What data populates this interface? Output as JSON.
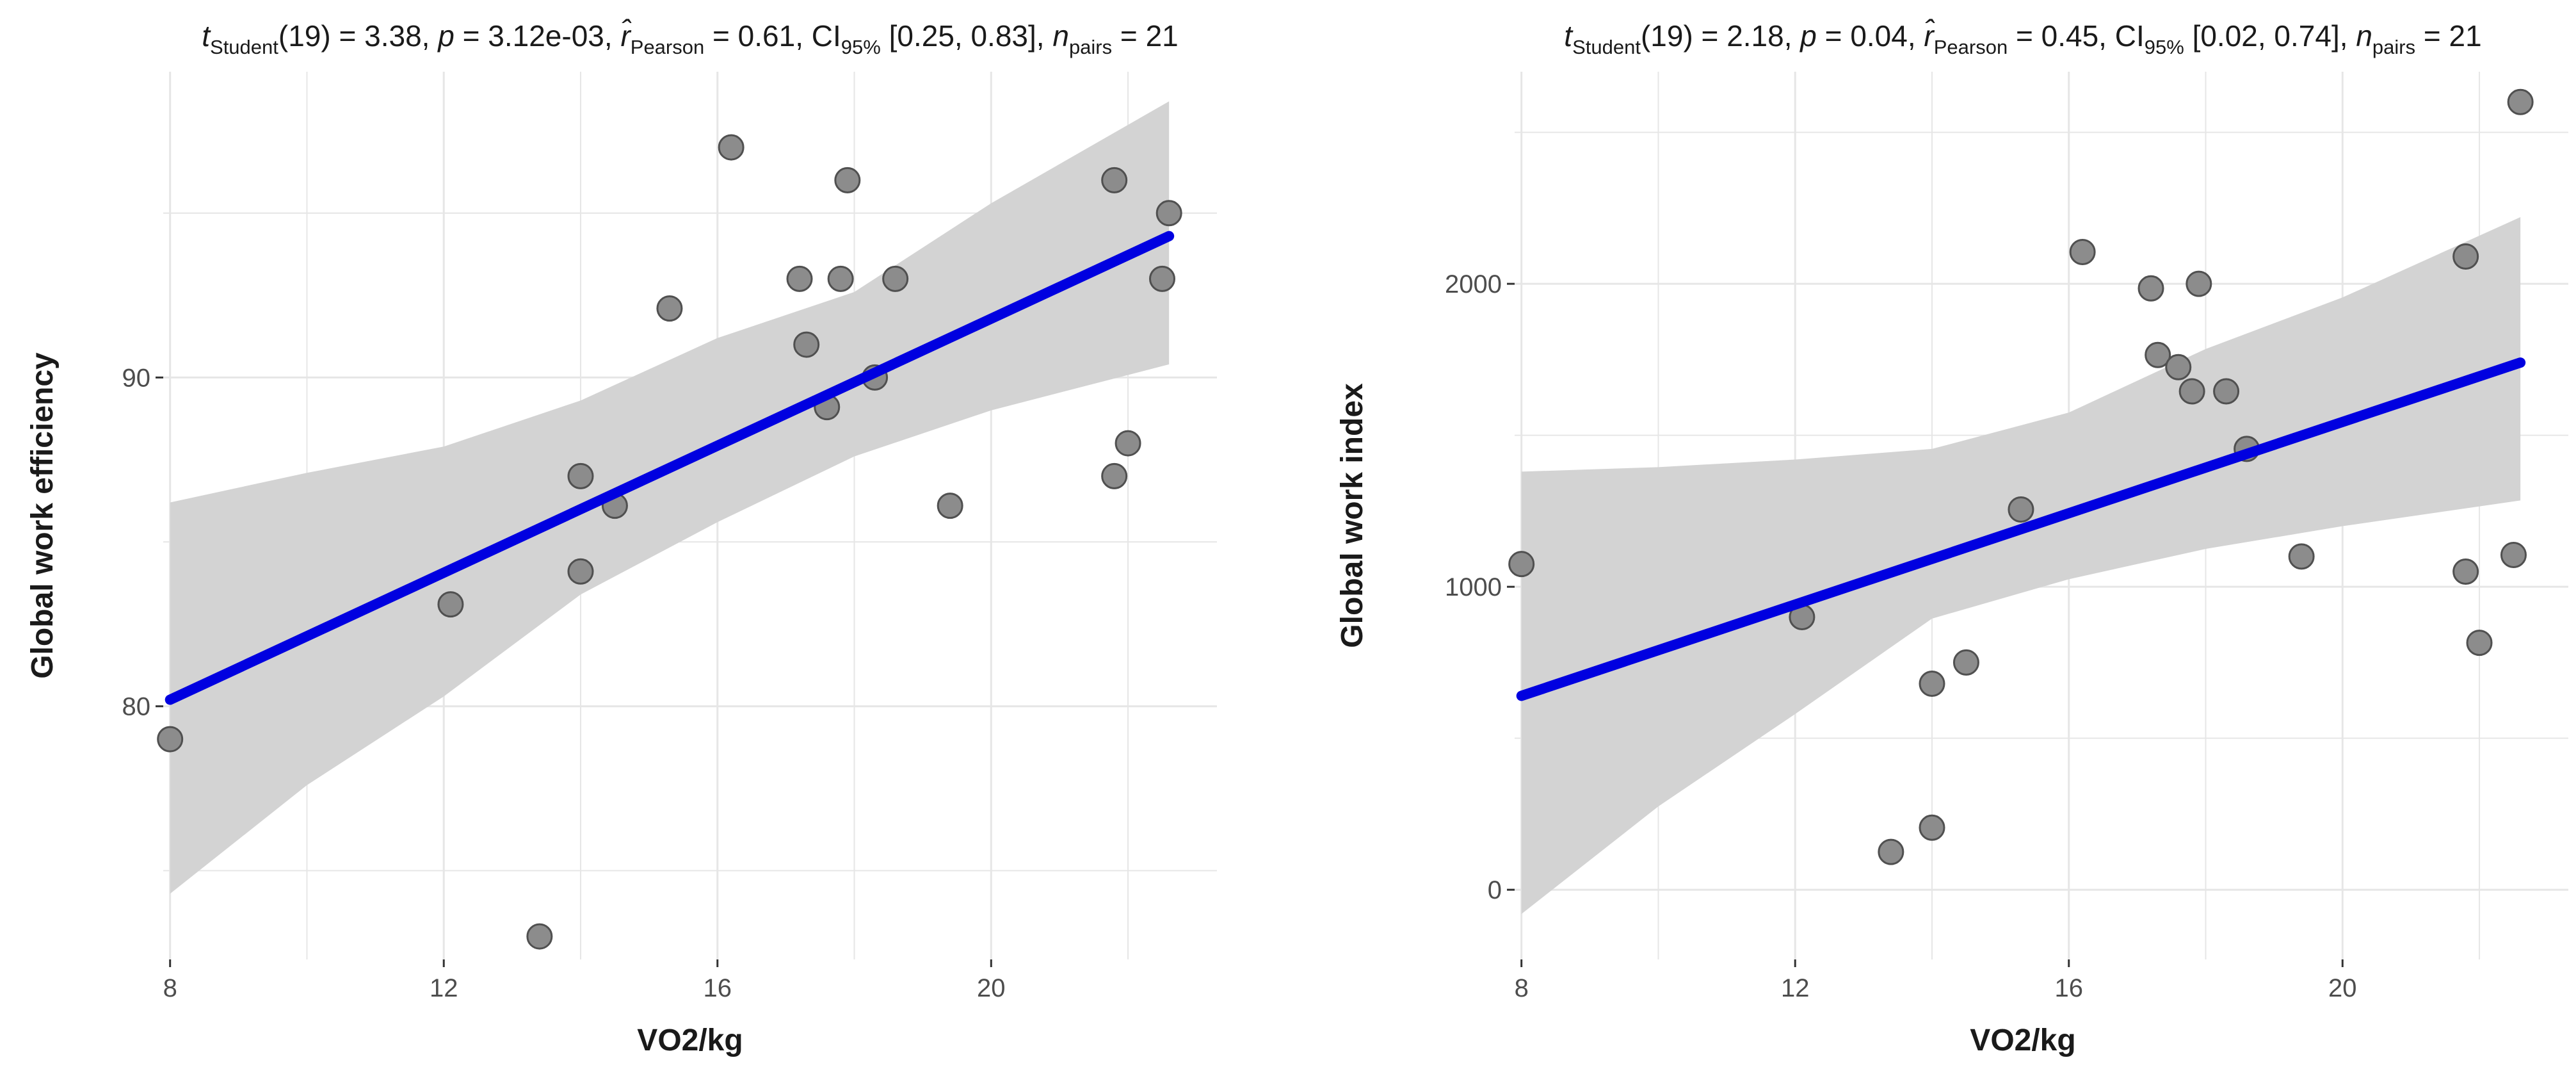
{
  "chart_data": [
    {
      "type": "scatter",
      "subtitle": {
        "test": "Student",
        "df": "19",
        "t": "3.38",
        "p": "3.12e-03",
        "r_label": "Pearson",
        "r": "0.61",
        "ci_label": "95%",
        "ci": "[0.25, 0.83]",
        "n_label": "pairs",
        "n": "21"
      },
      "xlabel": "VO2/kg",
      "ylabel": "Global work efficiency",
      "xlim": [
        7.9,
        23.3
      ],
      "ylim": [
        72.3,
        99.3
      ],
      "xticks": [
        8,
        12,
        16,
        20
      ],
      "yticks": [
        80,
        90
      ],
      "grid": true,
      "points": [
        {
          "x": 8.0,
          "y": 79.0
        },
        {
          "x": 12.1,
          "y": 83.1
        },
        {
          "x": 13.4,
          "y": 73.0
        },
        {
          "x": 14.0,
          "y": 87.0
        },
        {
          "x": 14.0,
          "y": 84.1
        },
        {
          "x": 14.5,
          "y": 86.1
        },
        {
          "x": 15.3,
          "y": 92.1
        },
        {
          "x": 16.2,
          "y": 97.0
        },
        {
          "x": 17.2,
          "y": 93.0
        },
        {
          "x": 17.3,
          "y": 91.0
        },
        {
          "x": 17.6,
          "y": 89.1
        },
        {
          "x": 17.8,
          "y": 93.0
        },
        {
          "x": 17.9,
          "y": 96.0
        },
        {
          "x": 18.3,
          "y": 90.0
        },
        {
          "x": 18.6,
          "y": 93.0
        },
        {
          "x": 19.4,
          "y": 86.1
        },
        {
          "x": 21.8,
          "y": 96.0
        },
        {
          "x": 21.8,
          "y": 87.0
        },
        {
          "x": 22.0,
          "y": 88.0
        },
        {
          "x": 22.5,
          "y": 93.0
        },
        {
          "x": 22.6,
          "y": 95.0
        }
      ],
      "fit": {
        "x0": 8.0,
        "y0": 80.2,
        "x1": 22.6,
        "y1": 94.3
      },
      "ci_band": {
        "x": [
          8.0,
          10.0,
          12.0,
          14.0,
          16.0,
          18.0,
          20.0,
          22.6
        ],
        "lower": [
          74.3,
          77.6,
          80.3,
          83.4,
          85.6,
          87.6,
          89.0,
          90.4
        ],
        "upper": [
          86.2,
          87.1,
          87.9,
          89.3,
          91.2,
          92.6,
          95.3,
          98.4
        ]
      }
    },
    {
      "type": "scatter",
      "subtitle": {
        "test": "Student",
        "df": "19",
        "t": "2.18",
        "p": "0.04",
        "r_label": "Pearson",
        "r": "0.45",
        "ci_label": "95%",
        "ci": "[0.02, 0.74]",
        "n_label": "pairs",
        "n": "21"
      },
      "xlabel": "VO2/kg",
      "ylabel": "Global work index",
      "xlim": [
        7.9,
        23.3
      ],
      "ylim": [
        -230,
        2700
      ],
      "xticks": [
        8,
        12,
        16,
        20
      ],
      "yticks": [
        0,
        1000,
        2000
      ],
      "grid": true,
      "points": [
        {
          "x": 8.0,
          "y": 1075
        },
        {
          "x": 12.1,
          "y": 900
        },
        {
          "x": 13.4,
          "y": 125
        },
        {
          "x": 14.0,
          "y": 680
        },
        {
          "x": 14.0,
          "y": 205
        },
        {
          "x": 14.5,
          "y": 750
        },
        {
          "x": 15.3,
          "y": 1255
        },
        {
          "x": 16.2,
          "y": 2105
        },
        {
          "x": 17.2,
          "y": 1985
        },
        {
          "x": 17.3,
          "y": 1765
        },
        {
          "x": 17.6,
          "y": 1725
        },
        {
          "x": 17.8,
          "y": 1645
        },
        {
          "x": 17.9,
          "y": 2000
        },
        {
          "x": 18.3,
          "y": 1645
        },
        {
          "x": 18.6,
          "y": 1455
        },
        {
          "x": 19.4,
          "y": 1100
        },
        {
          "x": 21.8,
          "y": 2090
        },
        {
          "x": 21.8,
          "y": 1050
        },
        {
          "x": 22.0,
          "y": 815
        },
        {
          "x": 22.5,
          "y": 1105
        },
        {
          "x": 22.6,
          "y": 2600
        }
      ],
      "fit": {
        "x0": 8.0,
        "y0": 640,
        "x1": 22.6,
        "y1": 1740
      },
      "ci_band": {
        "x": [
          8.0,
          10.0,
          12.0,
          14.0,
          16.0,
          18.0,
          20.0,
          22.6
        ],
        "lower": [
          -80,
          275,
          580,
          895,
          1025,
          1125,
          1200,
          1285
        ],
        "upper": [
          1380,
          1395,
          1420,
          1455,
          1575,
          1785,
          1955,
          2220
        ]
      }
    }
  ]
}
